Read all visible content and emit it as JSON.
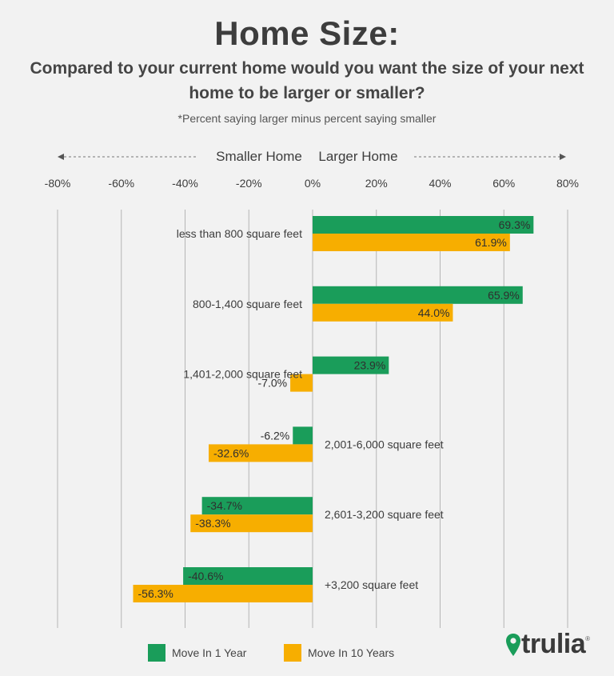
{
  "title": "Home Size:",
  "subtitle": "Compared to your current home would you want the size of your next home to be larger or smaller?",
  "note": "*Percent saying larger minus percent saying smaller",
  "direction_labels": {
    "left": "Smaller Home",
    "right": "Larger Home"
  },
  "colors": {
    "move_1_year": "#1a9d5a",
    "move_10_years": "#f7ae00",
    "grid": "#b5b5b5",
    "text": "#3a3a3a"
  },
  "chart_data": {
    "type": "bar",
    "orientation": "horizontal",
    "xlim": [
      -80,
      80
    ],
    "ticks": [
      "-80%",
      "-60%",
      "-40%",
      "-20%",
      "0%",
      "20%",
      "40%",
      "60%",
      "80%"
    ],
    "grid": true,
    "legend_position": "bottom",
    "categories": [
      "less than 800 square feet",
      "800-1,400 square feet",
      "1,401-2,000 square feet",
      "2,001-6,000 square feet",
      "2,601-3,200 square feet",
      "+3,200 square feet"
    ],
    "series": [
      {
        "name": "Move In 1 Year",
        "values": [
          69.3,
          65.9,
          23.9,
          -6.2,
          -34.7,
          -40.6
        ],
        "labels": [
          "69.3%",
          "65.9%",
          "23.9%",
          "-6.2%",
          "-34.7%",
          "-40.6%"
        ]
      },
      {
        "name": "Move In 10 Years",
        "values": [
          61.9,
          44.0,
          -7.0,
          -32.6,
          -38.3,
          -56.3
        ],
        "labels": [
          "61.9%",
          "44.0%",
          "-7.0%",
          "-32.6%",
          "-38.3%",
          "-56.3%"
        ]
      }
    ]
  },
  "logo": {
    "text": "trulia",
    "reg": "®",
    "icon": "map-pin-icon"
  }
}
